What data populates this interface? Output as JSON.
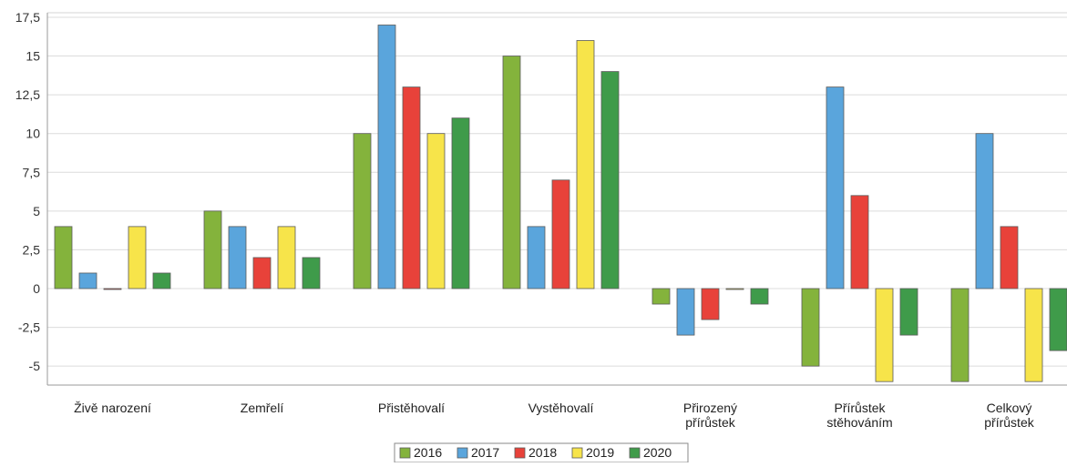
{
  "chart_data": {
    "type": "bar",
    "categories": [
      [
        "Živě narození"
      ],
      [
        "Zemřelí"
      ],
      [
        "Přistěhovalí"
      ],
      [
        "Vystěhovalí"
      ],
      [
        "Přirozený",
        "přírůstek"
      ],
      [
        "Přírůstek",
        "stěhováním"
      ],
      [
        "Celkový",
        "přírůstek"
      ]
    ],
    "series": [
      {
        "name": "2016",
        "color": "#84b33c",
        "values": [
          4,
          5,
          10,
          15,
          -1,
          -5,
          -6
        ]
      },
      {
        "name": "2017",
        "color": "#5aa5dc",
        "values": [
          1,
          4,
          17,
          4,
          -3,
          13,
          10
        ]
      },
      {
        "name": "2018",
        "color": "#e8423a",
        "values": [
          0,
          2,
          13,
          7,
          -2,
          6,
          4
        ]
      },
      {
        "name": "2019",
        "color": "#f7e44a",
        "values": [
          4,
          4,
          10,
          16,
          0,
          -6,
          -6
        ]
      },
      {
        "name": "2020",
        "color": "#3f9b4a",
        "values": [
          1,
          2,
          11,
          14,
          -1,
          -3,
          -4
        ]
      }
    ],
    "yticks": [
      "17,5",
      "15",
      "12,5",
      "10",
      "7,5",
      "5",
      "2,5",
      "0",
      "-2,5",
      "-5"
    ],
    "ylim": [
      -6.2,
      17.5
    ],
    "grid": true,
    "legend_position": "bottom"
  }
}
